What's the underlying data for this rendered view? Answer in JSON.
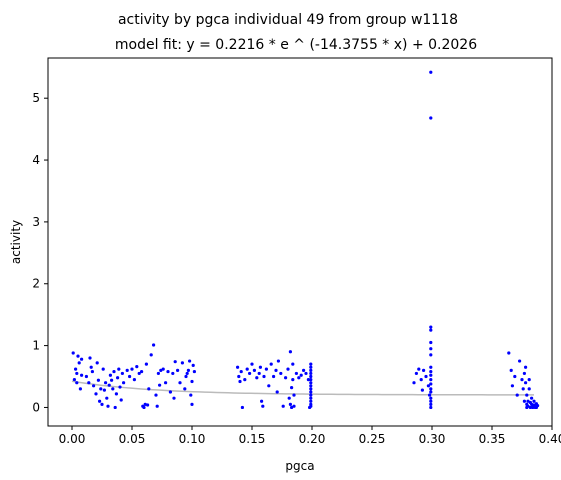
{
  "chart_data": {
    "type": "scatter",
    "title": "activity by pgca individual 49 from group w1118",
    "subtitle": "model fit: y = 0.2216 * e ^ (-14.3755 * x) + 0.2026",
    "xlabel": "pgca",
    "ylabel": "activity",
    "xlim": [
      -0.02,
      0.4
    ],
    "ylim": [
      -0.3,
      5.65
    ],
    "x_ticks": [
      "0.00",
      "0.05",
      "0.10",
      "0.15",
      "0.20",
      "0.25",
      "0.30",
      "0.35",
      "0.40"
    ],
    "y_ticks": [
      "0",
      "1",
      "2",
      "3",
      "4",
      "5"
    ],
    "grid": false,
    "colors": {
      "points": "#0000ff",
      "fit_line": "#bbbbbb",
      "axes": "#000000"
    },
    "fit": {
      "a": 0.2216,
      "b": -14.3755,
      "c": 0.2026,
      "x_range": [
        0.0,
        0.385
      ]
    },
    "points": [
      [
        0.001,
        0.88
      ],
      [
        0.002,
        0.45
      ],
      [
        0.003,
        0.62
      ],
      [
        0.004,
        0.55
      ],
      [
        0.004,
        0.4
      ],
      [
        0.005,
        0.83
      ],
      [
        0.006,
        0.72
      ],
      [
        0.007,
        0.3
      ],
      [
        0.008,
        0.52
      ],
      [
        0.008,
        0.78
      ],
      [
        0.012,
        0.5
      ],
      [
        0.014,
        0.4
      ],
      [
        0.015,
        0.8
      ],
      [
        0.016,
        0.65
      ],
      [
        0.017,
        0.58
      ],
      [
        0.018,
        0.35
      ],
      [
        0.02,
        0.22
      ],
      [
        0.021,
        0.72
      ],
      [
        0.022,
        0.44
      ],
      [
        0.023,
        0.1
      ],
      [
        0.024,
        0.3
      ],
      [
        0.025,
        0.05
      ],
      [
        0.026,
        0.62
      ],
      [
        0.027,
        0.28
      ],
      [
        0.028,
        0.4
      ],
      [
        0.029,
        0.15
      ],
      [
        0.03,
        0.02
      ],
      [
        0.031,
        0.36
      ],
      [
        0.032,
        0.52
      ],
      [
        0.033,
        0.44
      ],
      [
        0.034,
        0.3
      ],
      [
        0.035,
        0.58
      ],
      [
        0.036,
        0.0
      ],
      [
        0.037,
        0.22
      ],
      [
        0.038,
        0.48
      ],
      [
        0.039,
        0.62
      ],
      [
        0.04,
        0.33
      ],
      [
        0.041,
        0.12
      ],
      [
        0.042,
        0.55
      ],
      [
        0.043,
        0.4
      ],
      [
        0.046,
        0.6
      ],
      [
        0.048,
        0.5
      ],
      [
        0.05,
        0.62
      ],
      [
        0.052,
        0.45
      ],
      [
        0.054,
        0.66
      ],
      [
        0.056,
        0.55
      ],
      [
        0.058,
        0.58
      ],
      [
        0.059,
        0.02
      ],
      [
        0.06,
        0.0
      ],
      [
        0.061,
        0.05
      ],
      [
        0.062,
        0.7
      ],
      [
        0.063,
        0.04
      ],
      [
        0.064,
        0.3
      ],
      [
        0.066,
        0.85
      ],
      [
        0.068,
        1.01
      ],
      [
        0.07,
        0.2
      ],
      [
        0.071,
        0.02
      ],
      [
        0.072,
        0.55
      ],
      [
        0.073,
        0.36
      ],
      [
        0.074,
        0.6
      ],
      [
        0.076,
        0.62
      ],
      [
        0.078,
        0.4
      ],
      [
        0.08,
        0.58
      ],
      [
        0.082,
        0.25
      ],
      [
        0.084,
        0.55
      ],
      [
        0.085,
        0.15
      ],
      [
        0.086,
        0.74
      ],
      [
        0.088,
        0.6
      ],
      [
        0.09,
        0.4
      ],
      [
        0.092,
        0.72
      ],
      [
        0.094,
        0.3
      ],
      [
        0.095,
        0.5
      ],
      [
        0.096,
        0.55
      ],
      [
        0.097,
        0.6
      ],
      [
        0.098,
        0.75
      ],
      [
        0.099,
        0.2
      ],
      [
        0.1,
        0.42
      ],
      [
        0.1,
        0.05
      ],
      [
        0.101,
        0.68
      ],
      [
        0.102,
        0.58
      ],
      [
        0.138,
        0.65
      ],
      [
        0.139,
        0.5
      ],
      [
        0.14,
        0.42
      ],
      [
        0.141,
        0.58
      ],
      [
        0.142,
        0.0
      ],
      [
        0.144,
        0.45
      ],
      [
        0.146,
        0.62
      ],
      [
        0.148,
        0.55
      ],
      [
        0.15,
        0.7
      ],
      [
        0.152,
        0.6
      ],
      [
        0.154,
        0.48
      ],
      [
        0.156,
        0.55
      ],
      [
        0.157,
        0.65
      ],
      [
        0.158,
        0.1
      ],
      [
        0.159,
        0.02
      ],
      [
        0.16,
        0.5
      ],
      [
        0.162,
        0.62
      ],
      [
        0.164,
        0.35
      ],
      [
        0.166,
        0.7
      ],
      [
        0.168,
        0.5
      ],
      [
        0.17,
        0.6
      ],
      [
        0.171,
        0.25
      ],
      [
        0.172,
        0.75
      ],
      [
        0.174,
        0.55
      ],
      [
        0.176,
        0.02
      ],
      [
        0.178,
        0.48
      ],
      [
        0.18,
        0.62
      ],
      [
        0.181,
        0.15
      ],
      [
        0.182,
        0.9
      ],
      [
        0.182,
        0.05
      ],
      [
        0.183,
        0.32
      ],
      [
        0.183,
        0.0
      ],
      [
        0.184,
        0.45
      ],
      [
        0.184,
        0.7
      ],
      [
        0.185,
        0.2
      ],
      [
        0.185,
        0.02
      ],
      [
        0.187,
        0.55
      ],
      [
        0.189,
        0.48
      ],
      [
        0.191,
        0.52
      ],
      [
        0.193,
        0.6
      ],
      [
        0.195,
        0.55
      ],
      [
        0.197,
        0.45
      ],
      [
        0.198,
        0.0
      ],
      [
        0.199,
        0.05
      ],
      [
        0.199,
        0.1
      ],
      [
        0.199,
        0.15
      ],
      [
        0.199,
        0.2
      ],
      [
        0.199,
        0.25
      ],
      [
        0.199,
        0.3
      ],
      [
        0.199,
        0.35
      ],
      [
        0.199,
        0.4
      ],
      [
        0.199,
        0.45
      ],
      [
        0.199,
        0.5
      ],
      [
        0.199,
        0.55
      ],
      [
        0.199,
        0.6
      ],
      [
        0.199,
        0.65
      ],
      [
        0.199,
        0.7
      ],
      [
        0.199,
        0.02
      ],
      [
        0.285,
        0.4
      ],
      [
        0.287,
        0.55
      ],
      [
        0.289,
        0.62
      ],
      [
        0.291,
        0.45
      ],
      [
        0.292,
        0.28
      ],
      [
        0.293,
        0.6
      ],
      [
        0.295,
        0.5
      ],
      [
        0.297,
        0.35
      ],
      [
        0.298,
        0.2
      ],
      [
        0.299,
        0.05
      ],
      [
        0.299,
        0.0
      ],
      [
        0.299,
        0.1
      ],
      [
        0.299,
        0.15
      ],
      [
        0.299,
        0.25
      ],
      [
        0.299,
        0.3
      ],
      [
        0.299,
        0.38
      ],
      [
        0.299,
        0.45
      ],
      [
        0.299,
        0.52
      ],
      [
        0.299,
        0.58
      ],
      [
        0.299,
        0.65
      ],
      [
        0.299,
        0.85
      ],
      [
        0.299,
        0.95
      ],
      [
        0.299,
        1.05
      ],
      [
        0.299,
        1.25
      ],
      [
        0.299,
        1.3
      ],
      [
        0.299,
        4.68
      ],
      [
        0.299,
        5.42
      ],
      [
        0.364,
        0.88
      ],
      [
        0.366,
        0.6
      ],
      [
        0.367,
        0.35
      ],
      [
        0.369,
        0.5
      ],
      [
        0.371,
        0.2
      ],
      [
        0.373,
        0.75
      ],
      [
        0.375,
        0.45
      ],
      [
        0.376,
        0.3
      ],
      [
        0.377,
        0.55
      ],
      [
        0.377,
        0.1
      ],
      [
        0.378,
        0.65
      ],
      [
        0.378,
        0.4
      ],
      [
        0.379,
        0.05
      ],
      [
        0.379,
        0.0
      ],
      [
        0.379,
        0.2
      ],
      [
        0.38,
        0.1
      ],
      [
        0.38,
        0.02
      ],
      [
        0.381,
        0.3
      ],
      [
        0.381,
        0.45
      ],
      [
        0.382,
        0.0
      ],
      [
        0.382,
        0.08
      ],
      [
        0.383,
        0.05
      ],
      [
        0.383,
        0.15
      ],
      [
        0.384,
        0.02
      ],
      [
        0.384,
        0.0
      ],
      [
        0.385,
        0.1
      ],
      [
        0.385,
        0.04
      ],
      [
        0.386,
        0.0
      ],
      [
        0.386,
        0.02
      ],
      [
        0.387,
        0.06
      ],
      [
        0.387,
        0.0
      ],
      [
        0.388,
        0.03
      ]
    ]
  }
}
